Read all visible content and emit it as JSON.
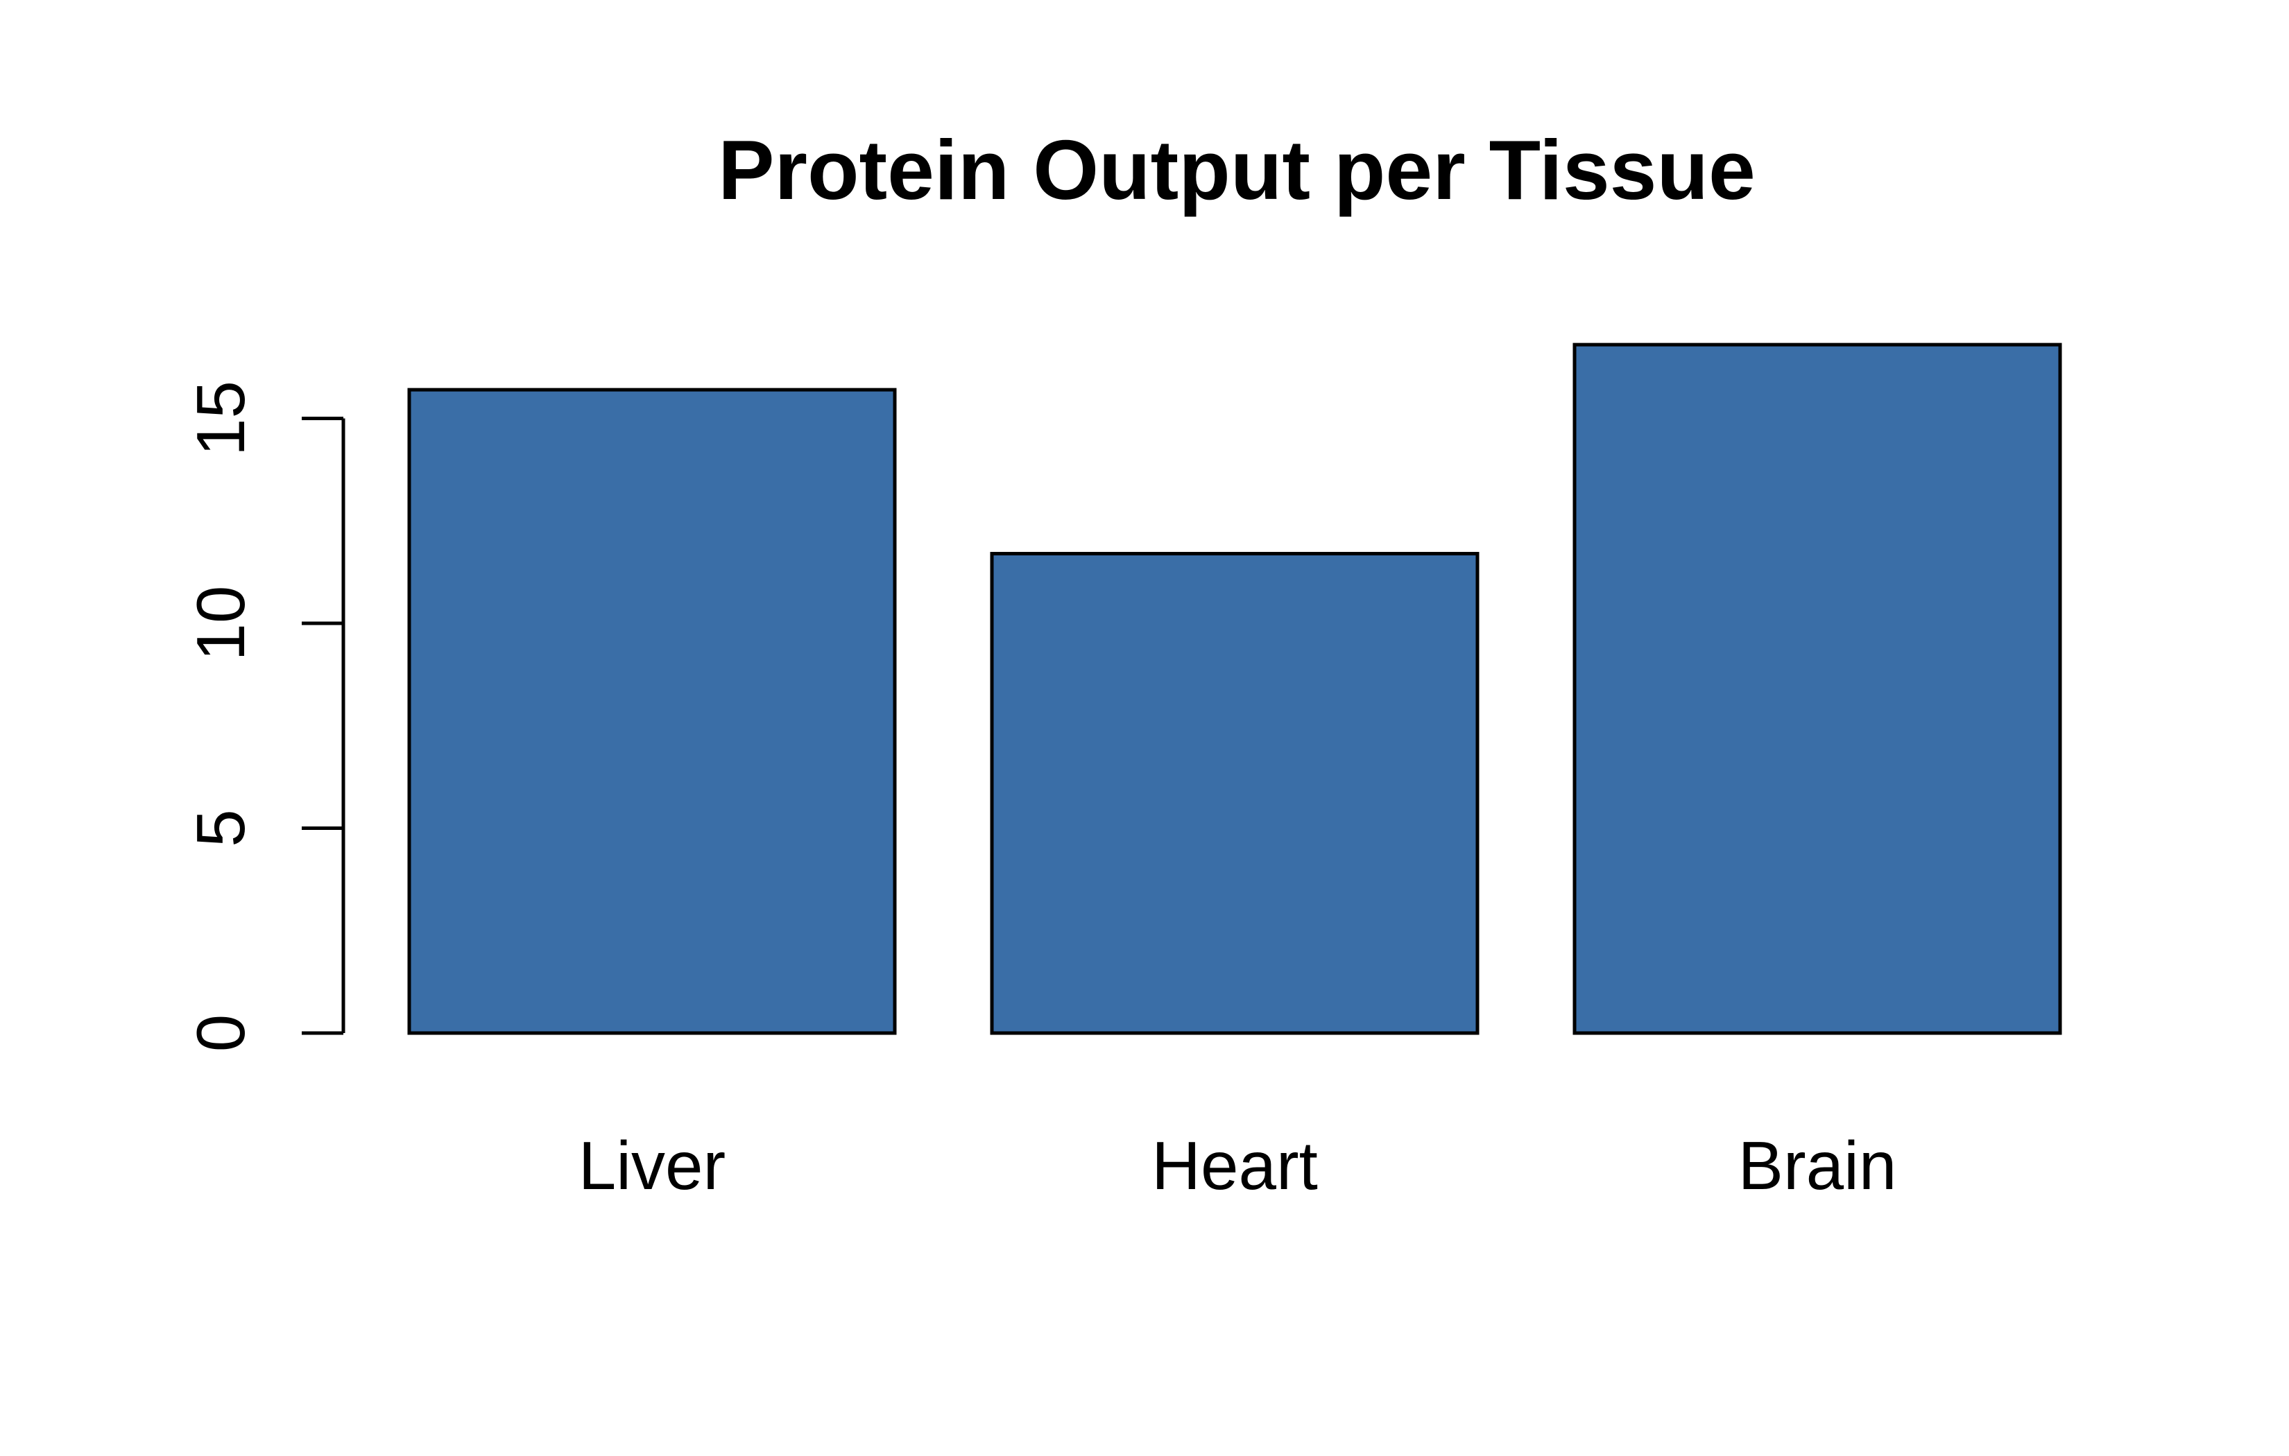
{
  "chart_data": {
    "type": "bar",
    "title": "Protein Output per Tissue",
    "xlabel": "",
    "ylabel": "",
    "categories": [
      "Liver",
      "Heart",
      "Brain"
    ],
    "values": [
      15.7,
      11.7,
      16.8
    ],
    "yticks": [
      0,
      5,
      10,
      15
    ],
    "ylim": [
      0,
      17
    ],
    "grid": false,
    "legend": "none",
    "colors": {
      "bar_fill": "#3A6EA7",
      "bar_stroke": "#000000",
      "axis": "#000000",
      "background": "#FFFFFF"
    }
  }
}
